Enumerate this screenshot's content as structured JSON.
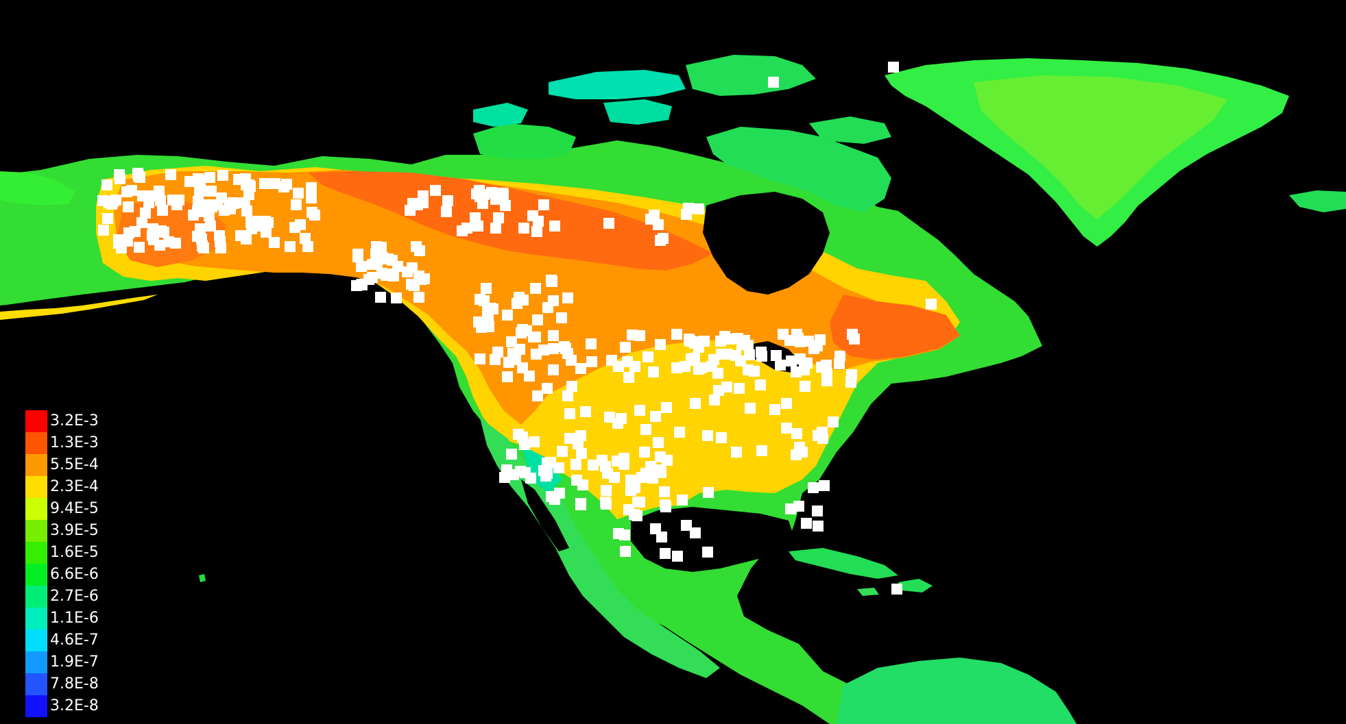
{
  "legend": {
    "entries": [
      {
        "label": "3.2E-3",
        "color": "#ff0000"
      },
      {
        "label": "1.3E-3",
        "color": "#ff5500"
      },
      {
        "label": "5.5E-4",
        "color": "#ff9900"
      },
      {
        "label": "2.3E-4",
        "color": "#ffdd00"
      },
      {
        "label": "9.4E-5",
        "color": "#ccff00"
      },
      {
        "label": "3.9E-5",
        "color": "#77ee00"
      },
      {
        "label": "1.6E-5",
        "color": "#33ee00"
      },
      {
        "label": "6.6E-6",
        "color": "#00ee22"
      },
      {
        "label": "2.7E-6",
        "color": "#00ee77"
      },
      {
        "label": "1.1E-6",
        "color": "#00eebb"
      },
      {
        "label": "4.6E-7",
        "color": "#00ddff"
      },
      {
        "label": "1.9E-7",
        "color": "#1199ff"
      },
      {
        "label": "7.8E-8",
        "color": "#2255ff"
      },
      {
        "label": "3.2E-8",
        "color": "#1111ff"
      }
    ]
  },
  "colors": {
    "background": "#000000",
    "occurrence_marker": "#ffffff",
    "legend_text": "#ffffff"
  }
}
